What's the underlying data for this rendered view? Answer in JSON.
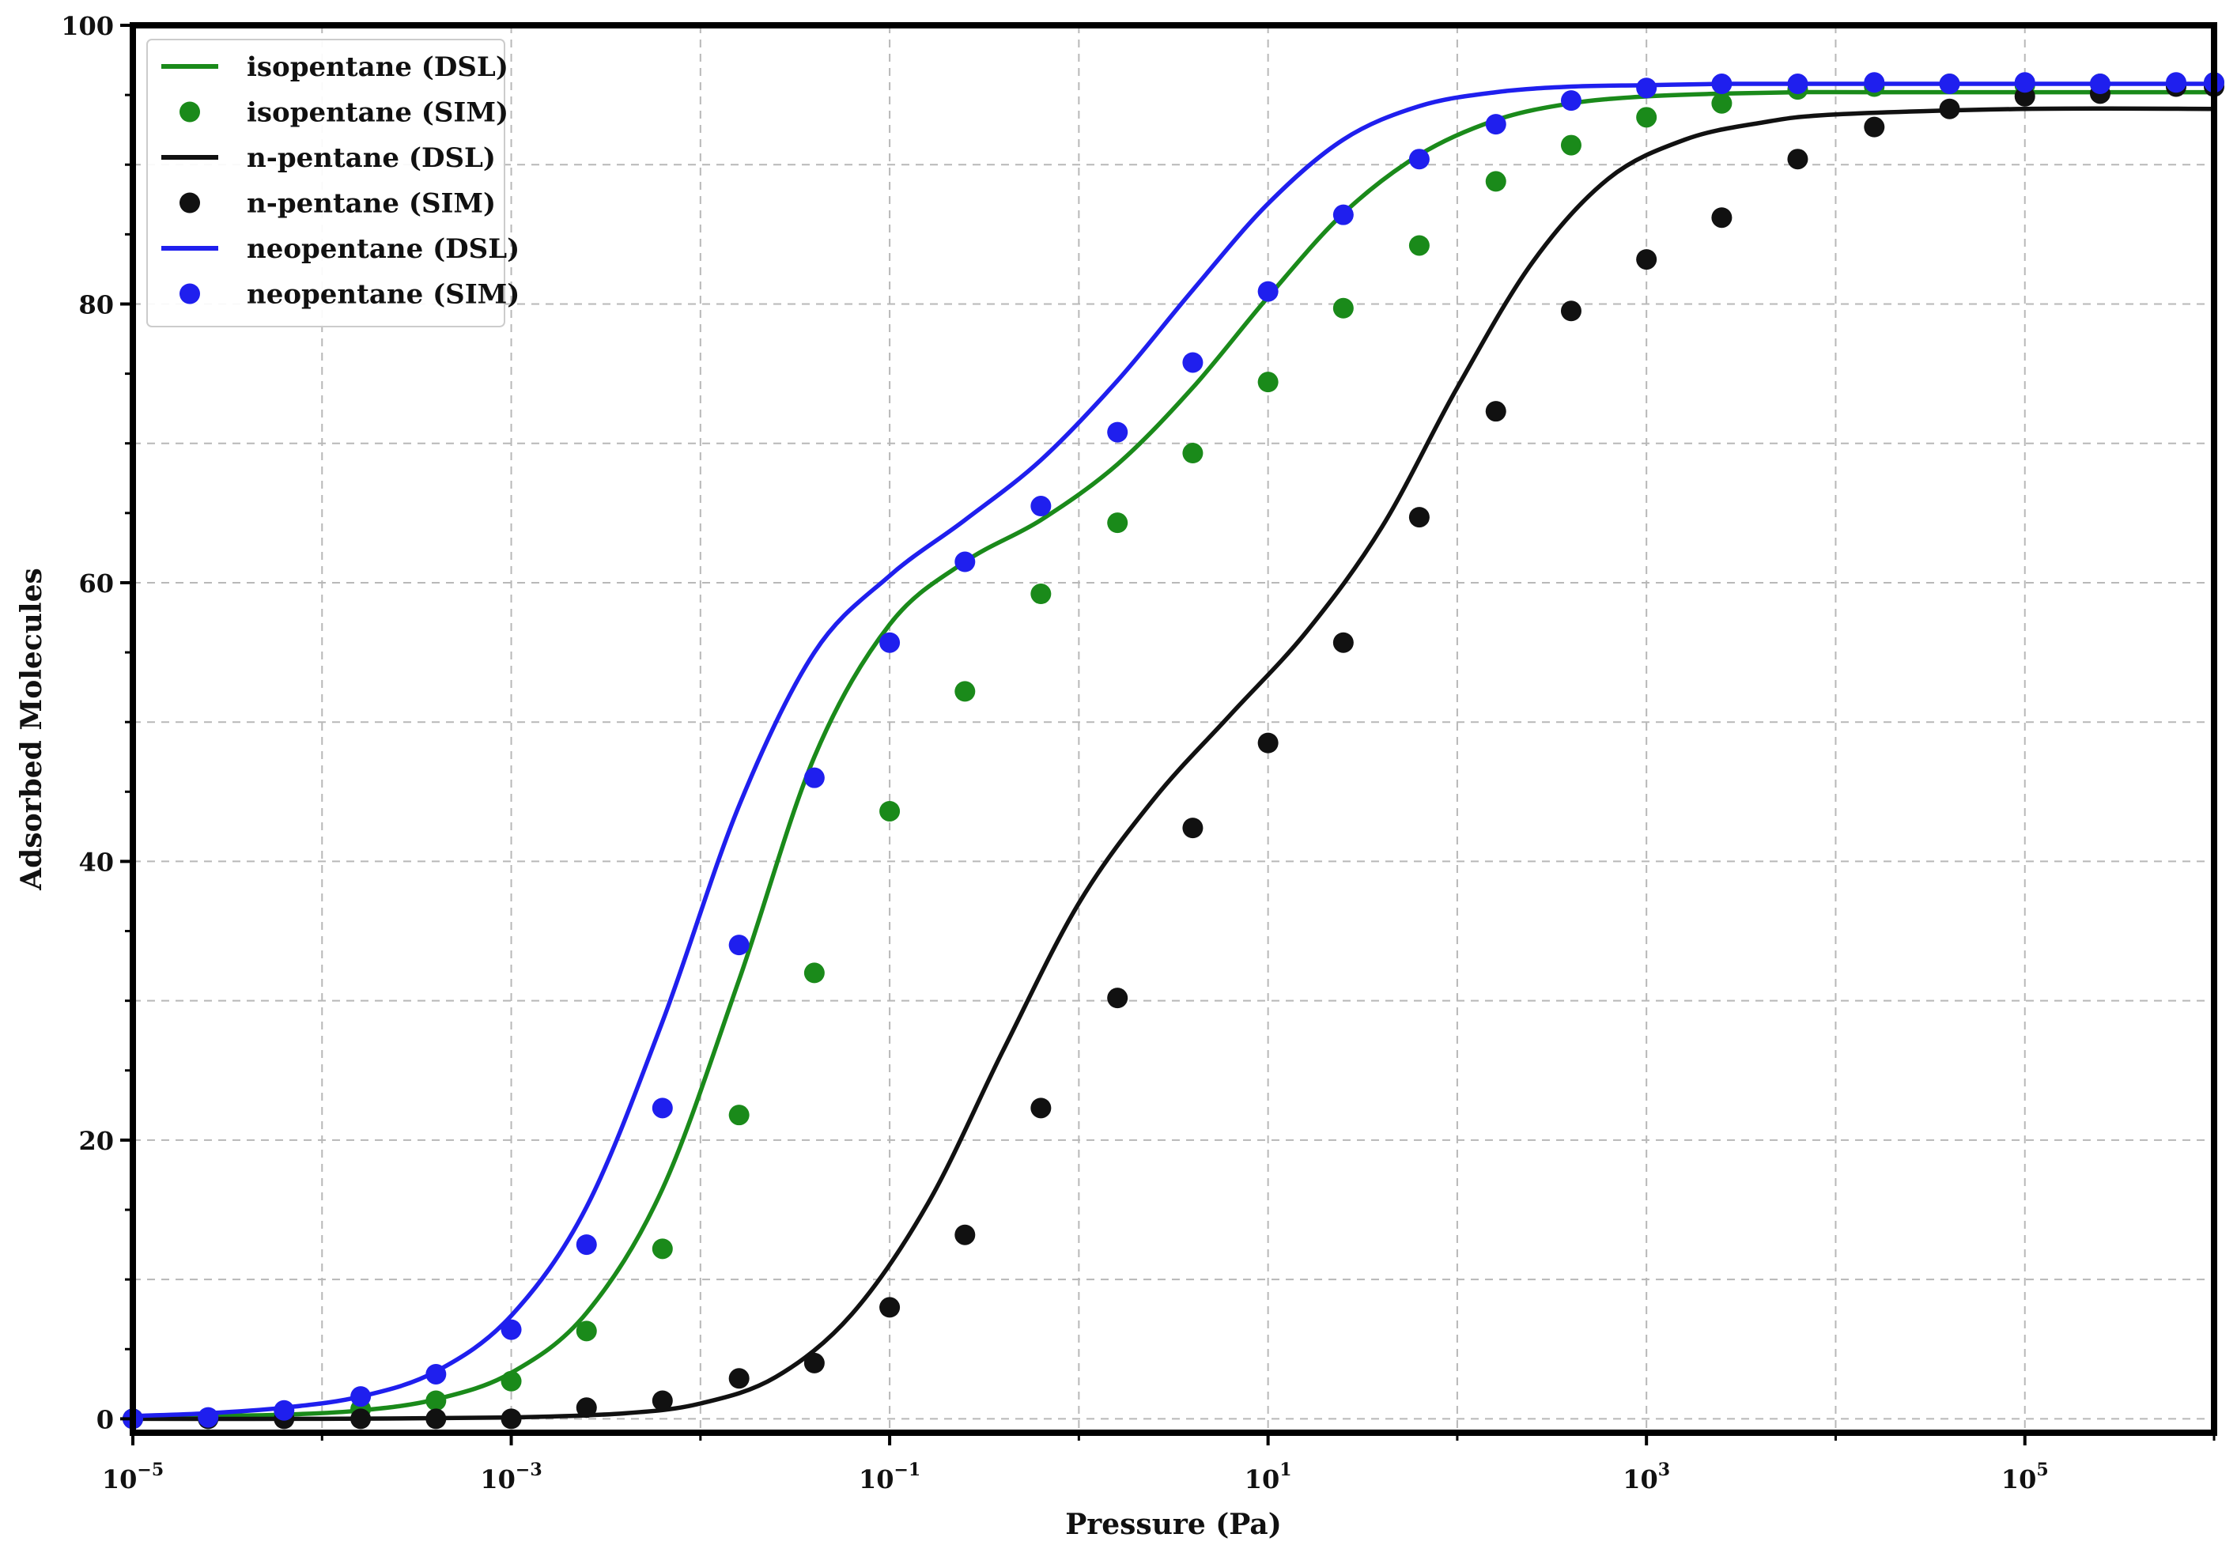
{
  "chart_data": {
    "type": "scatter",
    "title": "",
    "xlabel": "Pressure (Pa)",
    "ylabel": "Adsorbed Molecules",
    "xscale": "log",
    "xlim": [
      1e-05,
      1000000.0
    ],
    "ylim": [
      -1,
      100
    ],
    "grid": true,
    "legend_position": "top-left",
    "x_ticks": [
      {
        "base": "10",
        "exp": "−5"
      },
      {
        "base": "10",
        "exp": "−3"
      },
      {
        "base": "10",
        "exp": "−1"
      },
      {
        "base": "10",
        "exp": "1"
      },
      {
        "base": "10",
        "exp": "3"
      },
      {
        "base": "10",
        "exp": "5"
      }
    ],
    "y_ticks": [
      "0",
      "20",
      "40",
      "60",
      "80",
      "100"
    ],
    "y_tick_values": [
      0,
      20,
      40,
      60,
      80,
      100
    ],
    "sim_x": [
      1e-05,
      2.5e-05,
      6.3e-05,
      0.00016,
      0.0004,
      0.001,
      0.0025,
      0.0063,
      0.016,
      0.04,
      0.1,
      0.25,
      0.63,
      1.6,
      4,
      10,
      25,
      63,
      160,
      400,
      1000,
      2500,
      6300,
      16000,
      40000,
      100000,
      250000,
      630000,
      1000000
    ],
    "series": [
      {
        "name": "isopentane (DSL)",
        "kind": "line",
        "color": "#1a8a1a",
        "x": [
          1e-05,
          2.5e-05,
          6.3e-05,
          0.00016,
          0.0004,
          0.001,
          0.0025,
          0.0063,
          0.016,
          0.04,
          0.1,
          0.25,
          0.63,
          1.6,
          4,
          10,
          25,
          63,
          160,
          400,
          1000,
          2500,
          6300,
          16000,
          40000,
          100000,
          250000,
          630000,
          1000000
        ],
        "y": [
          0.1,
          0.2,
          0.3,
          0.6,
          1.4,
          3.3,
          7.6,
          16.5,
          31.5,
          47.5,
          57.0,
          61.5,
          64.5,
          68.5,
          74.0,
          80.5,
          86.5,
          90.7,
          93.2,
          94.4,
          94.9,
          95.1,
          95.2,
          95.2,
          95.2,
          95.2,
          95.2,
          95.2,
          95.2
        ]
      },
      {
        "name": "isopentane (SIM)",
        "kind": "marker",
        "color": "#1a8a1a",
        "x": [
          1e-05,
          2.5e-05,
          6.3e-05,
          0.00016,
          0.0004,
          0.001,
          0.0025,
          0.0063,
          0.016,
          0.04,
          0.1,
          0.25,
          0.63,
          1.6,
          4,
          10,
          25,
          63,
          160,
          400,
          1000,
          2500,
          6300,
          16000,
          40000,
          100000,
          250000,
          630000,
          1000000
        ],
        "y": [
          0,
          0,
          0.3,
          0.7,
          1.3,
          2.7,
          6.3,
          12.2,
          21.8,
          32.0,
          43.6,
          52.2,
          59.2,
          64.3,
          69.3,
          74.4,
          79.7,
          84.2,
          88.8,
          91.4,
          93.4,
          94.4,
          95.4,
          95.6,
          95.8,
          95.7,
          95.8,
          95.8,
          95.9
        ]
      },
      {
        "name": "n-pentane (DSL)",
        "kind": "line",
        "color": "#111111",
        "x": [
          1e-05,
          0.0001,
          0.001,
          0.004,
          0.01,
          0.025,
          0.063,
          0.16,
          0.4,
          1,
          2.5,
          6.3,
          16,
          40,
          100,
          250,
          630,
          1600,
          4000,
          10000,
          100000,
          1000000
        ],
        "y": [
          0,
          0,
          0.1,
          0.4,
          1.1,
          3.0,
          7.5,
          15.5,
          26.5,
          37.0,
          44.5,
          50.5,
          56.5,
          64.0,
          74.0,
          83.0,
          89.0,
          91.8,
          93.0,
          93.6,
          94.0,
          94.0
        ]
      },
      {
        "name": "n-pentane (SIM)",
        "kind": "marker",
        "color": "#111111",
        "x": [
          1e-05,
          2.5e-05,
          6.3e-05,
          0.00016,
          0.0004,
          0.001,
          0.0025,
          0.0063,
          0.016,
          0.04,
          0.1,
          0.25,
          0.63,
          1.6,
          4,
          10,
          25,
          63,
          160,
          400,
          1000,
          2500,
          6300,
          16000,
          40000,
          100000,
          250000,
          630000,
          1000000
        ],
        "y": [
          0,
          0,
          0,
          0,
          0,
          0,
          0.8,
          1.3,
          2.9,
          4.0,
          8.0,
          13.2,
          22.3,
          30.2,
          42.4,
          48.5,
          55.7,
          64.7,
          72.3,
          79.5,
          83.2,
          86.2,
          90.4,
          92.7,
          94.0,
          94.9,
          95.1,
          95.6,
          95.6
        ]
      },
      {
        "name": "neopentane (DSL)",
        "kind": "line",
        "color": "#1f1fee",
        "x": [
          1e-05,
          2.5e-05,
          6.3e-05,
          0.00016,
          0.0004,
          0.001,
          0.0025,
          0.0063,
          0.016,
          0.04,
          0.1,
          0.25,
          0.63,
          1.6,
          4,
          10,
          25,
          63,
          160,
          400,
          1000,
          2500,
          6300,
          16000,
          40000,
          100000,
          250000,
          630000,
          1000000
        ],
        "y": [
          0.2,
          0.4,
          0.8,
          1.6,
          3.4,
          7.4,
          15.2,
          28.5,
          44.0,
          55.0,
          60.5,
          64.5,
          68.8,
          74.5,
          81.0,
          87.2,
          91.8,
          94.2,
          95.2,
          95.6,
          95.7,
          95.8,
          95.8,
          95.8,
          95.8,
          95.8,
          95.8,
          95.8,
          95.8
        ]
      },
      {
        "name": "neopentane (SIM)",
        "kind": "marker",
        "color": "#1f1fee",
        "x": [
          1e-05,
          2.5e-05,
          6.3e-05,
          0.00016,
          0.0004,
          0.001,
          0.0025,
          0.0063,
          0.016,
          0.04,
          0.1,
          0.25,
          0.63,
          1.6,
          4,
          10,
          25,
          63,
          160,
          400,
          1000,
          2500,
          6300,
          16000,
          40000,
          100000,
          250000,
          630000,
          1000000
        ],
        "y": [
          0,
          0.1,
          0.6,
          1.6,
          3.2,
          6.4,
          12.5,
          22.3,
          34.0,
          46.0,
          55.7,
          61.5,
          65.5,
          70.8,
          75.8,
          80.9,
          86.4,
          90.4,
          92.9,
          94.6,
          95.5,
          95.8,
          95.8,
          95.9,
          95.8,
          95.9,
          95.8,
          95.9,
          95.9
        ]
      }
    ]
  }
}
